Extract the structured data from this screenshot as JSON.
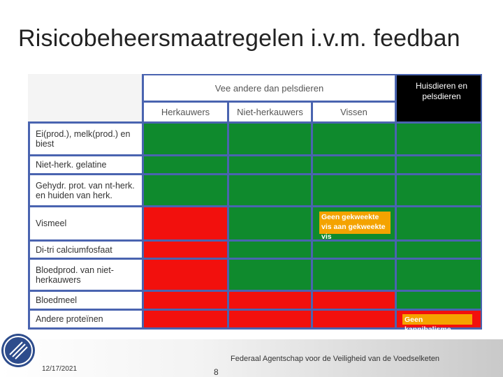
{
  "title": "Risicobeheersmaatregelen i.v.m. feedban",
  "table": {
    "group_header": "Vee andere dan pelsdieren",
    "pets_header": "Huisdieren en pelsdieren",
    "columns": [
      "Herkauwers",
      "Niet-herkauwers",
      "Vissen"
    ],
    "rows": [
      {
        "label": "Ei(prod.), melk(prod.) en biest",
        "status": [
          "allowed",
          "allowed",
          "allowed",
          "allowed"
        ]
      },
      {
        "label": "Niet-herk. gelatine",
        "status": [
          "allowed",
          "allowed",
          "allowed",
          "allowed"
        ]
      },
      {
        "label": "Gehydr. prot. van nt-herk. en huiden van herk.",
        "status": [
          "allowed",
          "allowed",
          "allowed",
          "allowed"
        ]
      },
      {
        "label": "Vismeel",
        "status": [
          "prohibited",
          "allowed",
          "allowed",
          "allowed"
        ]
      },
      {
        "label": "Di-tri calciumfosfaat",
        "status": [
          "prohibited",
          "allowed",
          "allowed",
          "allowed"
        ]
      },
      {
        "label": "Bloedprod. van niet-herkauwers",
        "status": [
          "prohibited",
          "allowed",
          "allowed",
          "allowed"
        ]
      },
      {
        "label": "Bloedmeel",
        "status": [
          "prohibited",
          "prohibited",
          "prohibited",
          "allowed"
        ]
      },
      {
        "label": "Andere proteïnen",
        "status": [
          "prohibited",
          "prohibited",
          "prohibited",
          "prohibited"
        ]
      }
    ],
    "notes": {
      "fish": "Geen gekweekte vis aan gekweekte vis",
      "cannibalism": "Geen kannibalisme"
    },
    "colors": {
      "allowed": "#0f8a2d",
      "prohibited": "#f2100d",
      "note": "#f4a300"
    }
  },
  "footer": {
    "agency": "Federaal Agentschap voor de Veiligheid van de Voedselketen",
    "date": "12/17/2021",
    "page": "8",
    "logo_icon": "fork-knife-icon"
  }
}
